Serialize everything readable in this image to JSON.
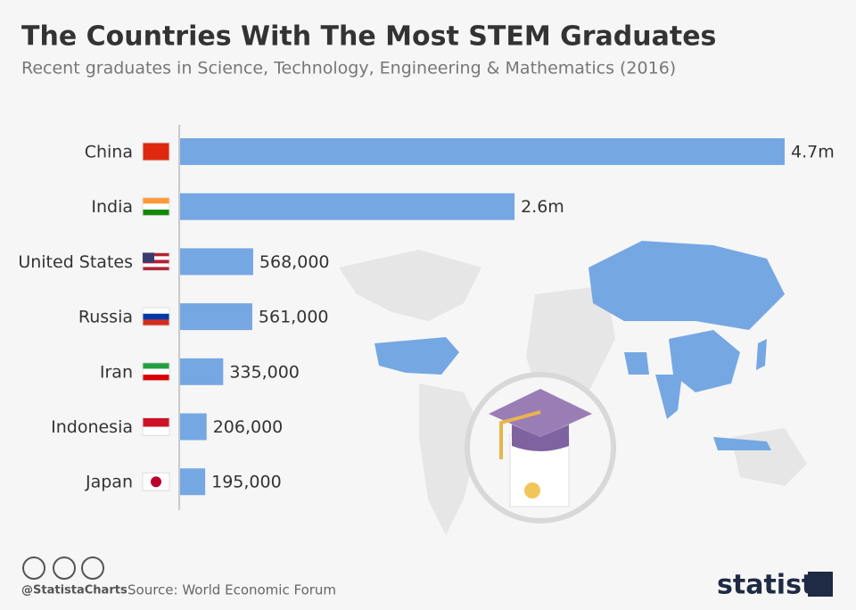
{
  "chart_data": {
    "type": "bar",
    "orientation": "horizontal",
    "title": "The Countries With The Most STEM Graduates",
    "subtitle": "Recent graduates in Science, Technology, Engineering & Mathematics (2016)",
    "categories": [
      "China",
      "India",
      "United States",
      "Russia",
      "Iran",
      "Indonesia",
      "Japan"
    ],
    "values": [
      4700000,
      2600000,
      568000,
      561000,
      335000,
      206000,
      195000
    ],
    "value_labels": [
      "4.7m",
      "2.6m",
      "568,000",
      "561,000",
      "335,000",
      "206,000",
      "195,000"
    ],
    "color": "#75a7e3",
    "credit": "@StatistaCharts",
    "source": "Source: World Economic Forum",
    "brand": "statista"
  }
}
